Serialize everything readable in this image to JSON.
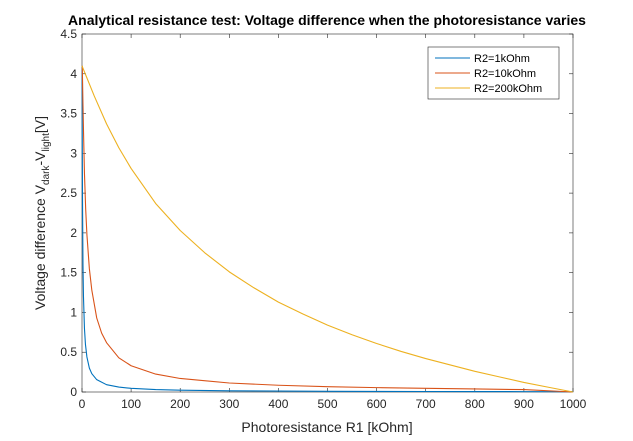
{
  "chart_data": {
    "type": "line",
    "title": "Analytical resistance test: Voltage difference when the photoresistance varies",
    "xlabel": "Photoresistance R1 [kOhm]",
    "ylabel": {
      "parts": [
        "Voltage difference V",
        "dark",
        "-V",
        "light",
        "[V]"
      ]
    },
    "xlim": [
      0,
      1000
    ],
    "ylim": [
      0,
      4.5
    ],
    "xticks": [
      "0",
      "100",
      "200",
      "300",
      "400",
      "500",
      "600",
      "700",
      "800",
      "900",
      "1000"
    ],
    "yticks": [
      "0",
      "0.5",
      "1",
      "1.5",
      "2",
      "2.5",
      "3",
      "3.5",
      "4",
      "4.5"
    ],
    "grid": false,
    "legend_position": "top-right",
    "series": [
      {
        "name": "R2=1kOhm",
        "color": "#0072BD",
        "x": [
          0.2,
          0.5,
          1,
          2,
          3,
          5,
          7,
          10,
          15,
          20,
          30,
          50,
          75,
          100,
          150,
          200,
          300,
          400,
          500,
          600,
          700,
          800,
          900,
          1000
        ],
        "y": [
          4.1,
          3.3,
          2.45,
          1.6,
          1.2,
          0.8,
          0.6,
          0.44,
          0.3,
          0.23,
          0.155,
          0.092,
          0.062,
          0.046,
          0.031,
          0.023,
          0.015,
          0.0115,
          0.009,
          0.0075,
          0.0063,
          0.0055,
          0.0048,
          0.0043
        ]
      },
      {
        "name": "R2=10kOhm",
        "color": "#D95319",
        "x": [
          0.5,
          1,
          2,
          3,
          5,
          7.5,
          10,
          15,
          20,
          30,
          40,
          50,
          75,
          100,
          150,
          200,
          300,
          400,
          500,
          600,
          700,
          800,
          900,
          1000
        ],
        "y": [
          4.1,
          3.95,
          3.6,
          3.3,
          2.75,
          2.3,
          1.98,
          1.55,
          1.28,
          0.93,
          0.74,
          0.62,
          0.43,
          0.33,
          0.225,
          0.17,
          0.113,
          0.085,
          0.067,
          0.055,
          0.046,
          0.038,
          0.03,
          0.0
        ]
      },
      {
        "name": "R2=200kOhm",
        "color": "#EDB120",
        "x": [
          0,
          25,
          50,
          75,
          100,
          150,
          200,
          250,
          300,
          350,
          400,
          450,
          500,
          550,
          600,
          650,
          700,
          750,
          800,
          850,
          900,
          950,
          1000
        ],
        "y": [
          4.1,
          3.72,
          3.37,
          3.07,
          2.81,
          2.37,
          2.03,
          1.75,
          1.51,
          1.31,
          1.13,
          0.98,
          0.84,
          0.72,
          0.61,
          0.51,
          0.42,
          0.34,
          0.26,
          0.19,
          0.12,
          0.06,
          0.0
        ]
      }
    ]
  }
}
